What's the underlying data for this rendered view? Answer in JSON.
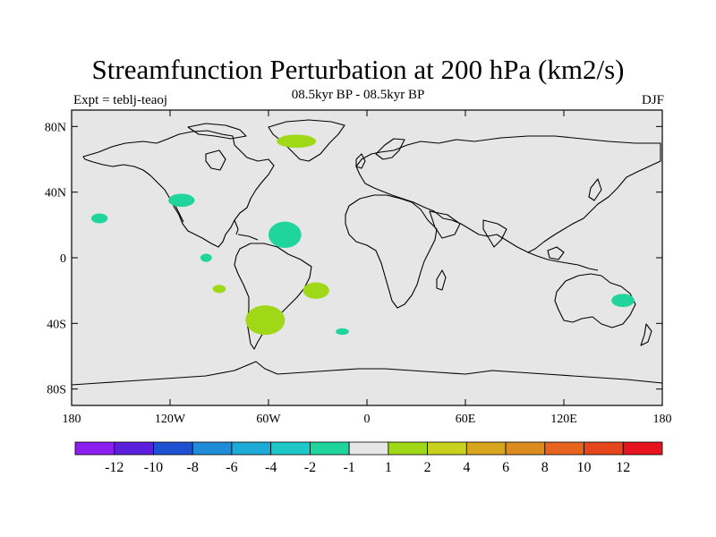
{
  "title": "Streamfunction Perturbation at 200 hPa (km2/s)",
  "subtitle": "08.5kyr BP - 08.5kyr BP",
  "left_label": "Expt = teblj-teaoj",
  "right_label": "DJF",
  "colors": {
    "background": "#ffffff",
    "ocean_land_fill": "#e6e6e6",
    "coastline": "#000000",
    "positive_anomaly": "#9fd816",
    "negative_anomaly": "#1fd59c"
  },
  "map": {
    "lat_ticks": [
      "80N",
      "40N",
      "0",
      "40S",
      "80S"
    ],
    "lon_ticks": [
      "180",
      "120W",
      "60W",
      "0",
      "60E",
      "120E",
      "180"
    ],
    "lat_range": [
      -90,
      90
    ],
    "lon_range": [
      -180,
      180
    ]
  },
  "contour_patches": [
    {
      "name": "greenland-patch",
      "sign": "positive",
      "lon": -43,
      "lat": 71,
      "rlon": 12,
      "rlat": 4
    },
    {
      "name": "california-patch",
      "sign": "negative",
      "lon": -113,
      "lat": 35,
      "rlon": 8,
      "rlat": 4
    },
    {
      "name": "hawaii-patch",
      "sign": "negative",
      "lon": -163,
      "lat": 24,
      "rlon": 5,
      "rlat": 3
    },
    {
      "name": "caribbean-patch",
      "sign": "negative",
      "lon": -50,
      "lat": 14,
      "rlon": 10,
      "rlat": 8
    },
    {
      "name": "east-pacific-eq-patch",
      "sign": "negative",
      "lon": -98,
      "lat": 0,
      "rlon": 3.5,
      "rlat": 2.5
    },
    {
      "name": "south-pacific-patch",
      "sign": "positive",
      "lon": -90,
      "lat": -19,
      "rlon": 4,
      "rlat": 2.5
    },
    {
      "name": "south-atlantic-patch",
      "sign": "positive",
      "lon": -31,
      "lat": -20,
      "rlon": 8,
      "rlat": 5
    },
    {
      "name": "argentina-patch",
      "sign": "positive",
      "lon": -62,
      "lat": -38,
      "rlon": 12,
      "rlat": 9
    },
    {
      "name": "south-atlantic-small-patch",
      "sign": "negative",
      "lon": -15,
      "lat": -45,
      "rlon": 4,
      "rlat": 2
    },
    {
      "name": "australia-patch",
      "sign": "negative",
      "lon": 156,
      "lat": -26,
      "rlon": 7,
      "rlat": 4
    }
  ],
  "colorbar": {
    "colors": [
      "#8c1ef0",
      "#5a1edc",
      "#1e50d2",
      "#1e8cd7",
      "#1eaad7",
      "#1ec8c8",
      "#1fd59c",
      "#e6e6e6",
      "#9fd816",
      "#c8d21e",
      "#d7a51e",
      "#dc8c1e",
      "#e6641e",
      "#e6461e",
      "#e6141e"
    ],
    "labels": [
      "-12",
      "-10",
      "-8",
      "-6",
      "-4",
      "-2",
      "-1",
      "1",
      "2",
      "4",
      "6",
      "8",
      "10",
      "12"
    ]
  }
}
